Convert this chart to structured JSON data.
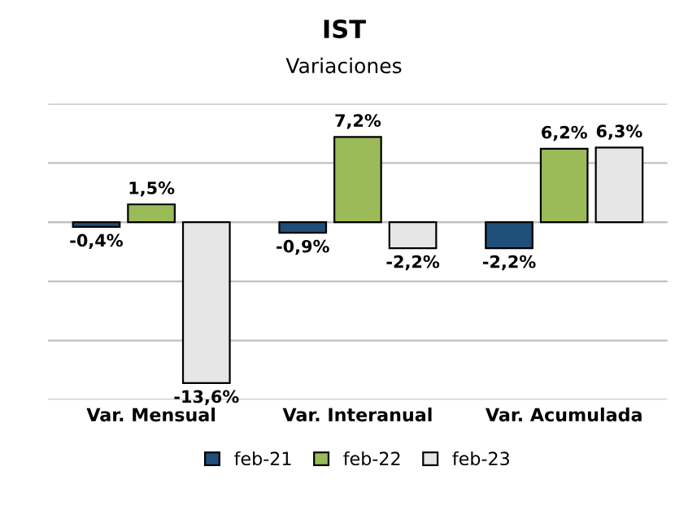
{
  "chart_data": {
    "type": "bar",
    "title": "IST",
    "subtitle": "Variaciones",
    "categories": [
      "Var. Mensual",
      "Var. Interanual",
      "Var. Acumulada"
    ],
    "series": [
      {
        "name": "feb-21",
        "color": "#1f4e79",
        "values": [
          -0.4,
          -0.9,
          -2.2
        ],
        "value_labels": [
          "-0,4%",
          "-0,9%",
          "-2,2%"
        ]
      },
      {
        "name": "feb-22",
        "color": "#9bbb59",
        "values": [
          1.5,
          7.2,
          6.2
        ],
        "value_labels": [
          "1,5%",
          "7,2%",
          "6,2%"
        ]
      },
      {
        "name": "feb-23",
        "color": "#e7e6e6",
        "values": [
          -13.6,
          -2.2,
          6.3
        ],
        "value_labels": [
          "-13,6%",
          "-2,2%",
          "6,3%"
        ]
      }
    ],
    "ylim": [
      -15,
      10
    ],
    "yticks": [
      {
        "value": -15,
        "label": null
      },
      {
        "value": -10,
        "label": null
      },
      {
        "value": -5,
        "label": null
      },
      {
        "value": 0,
        "label": null
      },
      {
        "value": 5,
        "label": null
      },
      {
        "value": 10,
        "label": null
      }
    ],
    "tick_labels": "x",
    "grid": "y",
    "legend": "bottom"
  }
}
